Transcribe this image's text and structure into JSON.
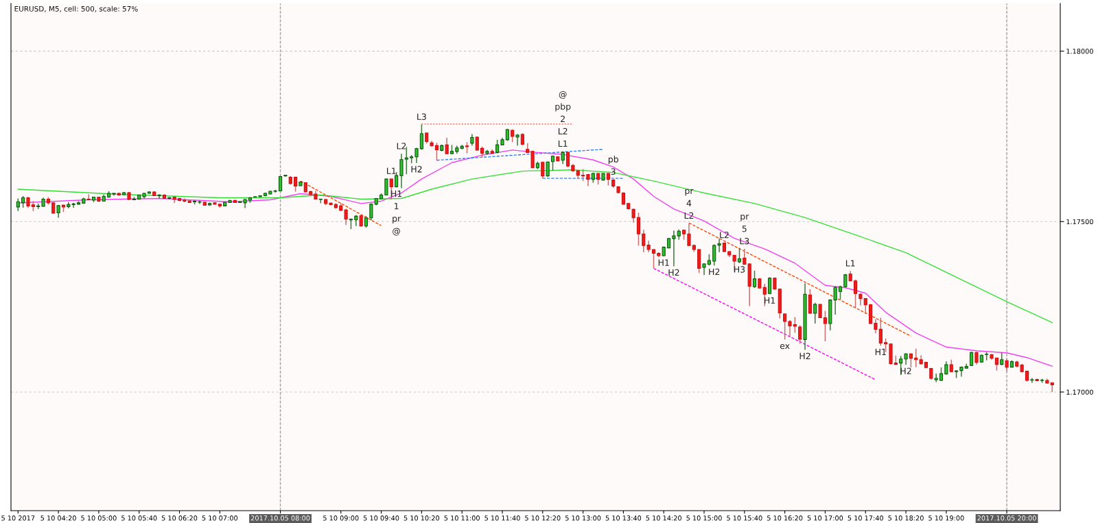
{
  "chart_data": {
    "type": "candlestick",
    "title": "EURUSD, M5, cell: 500, scale: 57%",
    "x": [
      "2017-10-05T03:40",
      "2017-10-05T03:45",
      "2017-10-05T03:50",
      "2017-10-05T03:55",
      "2017-10-05T04:00",
      "2017-10-05T04:05",
      "2017-10-05T04:10",
      "2017-10-05T04:15",
      "2017-10-05T04:20",
      "2017-10-05T04:25",
      "2017-10-05T04:30",
      "2017-10-05T04:35",
      "2017-10-05T04:40",
      "2017-10-05T04:45",
      "2017-10-05T04:50",
      "2017-10-05T04:55",
      "2017-10-05T05:00",
      "2017-10-05T05:05",
      "2017-10-05T05:10",
      "2017-10-05T05:15",
      "2017-10-05T05:20",
      "2017-10-05T05:25",
      "2017-10-05T05:30",
      "2017-10-05T05:35",
      "2017-10-05T05:40",
      "2017-10-05T05:45",
      "2017-10-05T05:50",
      "2017-10-05T05:55",
      "2017-10-05T06:00",
      "2017-10-05T06:05",
      "2017-10-05T06:10",
      "2017-10-05T06:15",
      "2017-10-05T06:20",
      "2017-10-05T06:25",
      "2017-10-05T06:30",
      "2017-10-05T06:35",
      "2017-10-05T06:40",
      "2017-10-05T06:45",
      "2017-10-05T06:50",
      "2017-10-05T06:55",
      "2017-10-05T07:00",
      "2017-10-05T07:05",
      "2017-10-05T07:10",
      "2017-10-05T07:15",
      "2017-10-05T07:20",
      "2017-10-05T07:25",
      "2017-10-05T07:30",
      "2017-10-05T07:35",
      "2017-10-05T07:40",
      "2017-10-05T07:45",
      "2017-10-05T07:50",
      "2017-10-05T07:55",
      "2017-10-05T08:00",
      "2017-10-05T08:05",
      "2017-10-05T08:10",
      "2017-10-05T08:15",
      "2017-10-05T08:20",
      "2017-10-05T08:25",
      "2017-10-05T08:30",
      "2017-10-05T08:35",
      "2017-10-05T08:40",
      "2017-10-05T08:45",
      "2017-10-05T08:50",
      "2017-10-05T08:55",
      "2017-10-05T09:00",
      "2017-10-05T09:05",
      "2017-10-05T09:10",
      "2017-10-05T09:15",
      "2017-10-05T09:20",
      "2017-10-05T09:25",
      "2017-10-05T09:30",
      "2017-10-05T09:35",
      "2017-10-05T09:40",
      "2017-10-05T09:45",
      "2017-10-05T09:50",
      "2017-10-05T09:55",
      "2017-10-05T10:00",
      "2017-10-05T10:05",
      "2017-10-05T10:10",
      "2017-10-05T10:15",
      "2017-10-05T10:20",
      "2017-10-05T10:25",
      "2017-10-05T10:30",
      "2017-10-05T10:35",
      "2017-10-05T10:40",
      "2017-10-05T10:45",
      "2017-10-05T10:50",
      "2017-10-05T10:55",
      "2017-10-05T11:00",
      "2017-10-05T11:05",
      "2017-10-05T11:10",
      "2017-10-05T11:15",
      "2017-10-05T11:20",
      "2017-10-05T11:25",
      "2017-10-05T11:30",
      "2017-10-05T11:35",
      "2017-10-05T11:40",
      "2017-10-05T11:45",
      "2017-10-05T11:50",
      "2017-10-05T11:55",
      "2017-10-05T12:00",
      "2017-10-05T12:05",
      "2017-10-05T12:10",
      "2017-10-05T12:15",
      "2017-10-05T12:20",
      "2017-10-05T12:25",
      "2017-10-05T12:30",
      "2017-10-05T12:35",
      "2017-10-05T12:40",
      "2017-10-05T12:45",
      "2017-10-05T12:50",
      "2017-10-05T12:55",
      "2017-10-05T13:00",
      "2017-10-05T13:05",
      "2017-10-05T13:10",
      "2017-10-05T13:15",
      "2017-10-05T13:20",
      "2017-10-05T13:25",
      "2017-10-05T13:30",
      "2017-10-05T13:35",
      "2017-10-05T13:40",
      "2017-10-05T13:45",
      "2017-10-05T13:50",
      "2017-10-05T13:55",
      "2017-10-05T14:00",
      "2017-10-05T14:05",
      "2017-10-05T14:10",
      "2017-10-05T14:15",
      "2017-10-05T14:20",
      "2017-10-05T14:25",
      "2017-10-05T14:30",
      "2017-10-05T14:35",
      "2017-10-05T14:40",
      "2017-10-05T14:45",
      "2017-10-05T14:50",
      "2017-10-05T14:55",
      "2017-10-05T15:00",
      "2017-10-05T15:05",
      "2017-10-05T15:10",
      "2017-10-05T15:15",
      "2017-10-05T15:20",
      "2017-10-05T15:25",
      "2017-10-05T15:30",
      "2017-10-05T15:35",
      "2017-10-05T15:40",
      "2017-10-05T15:45",
      "2017-10-05T15:50",
      "2017-10-05T15:55",
      "2017-10-05T16:00",
      "2017-10-05T16:05",
      "2017-10-05T16:10",
      "2017-10-05T16:15",
      "2017-10-05T16:20",
      "2017-10-05T16:25",
      "2017-10-05T16:30",
      "2017-10-05T16:35",
      "2017-10-05T16:40",
      "2017-10-05T16:45",
      "2017-10-05T16:50",
      "2017-10-05T16:55",
      "2017-10-05T17:00",
      "2017-10-05T17:05",
      "2017-10-05T17:10",
      "2017-10-05T17:15",
      "2017-10-05T17:20",
      "2017-10-05T17:25",
      "2017-10-05T17:30",
      "2017-10-05T17:35",
      "2017-10-05T17:40",
      "2017-10-05T17:45",
      "2017-10-05T17:50",
      "2017-10-05T17:55",
      "2017-10-05T18:00",
      "2017-10-05T18:05",
      "2017-10-05T18:10",
      "2017-10-05T18:15",
      "2017-10-05T18:20",
      "2017-10-05T18:25",
      "2017-10-05T18:30",
      "2017-10-05T18:35",
      "2017-10-05T18:40",
      "2017-10-05T18:45",
      "2017-10-05T18:50",
      "2017-10-05T18:55",
      "2017-10-05T19:00",
      "2017-10-05T19:05",
      "2017-10-05T19:10",
      "2017-10-05T19:15",
      "2017-10-05T19:20",
      "2017-10-05T19:25",
      "2017-10-05T19:30",
      "2017-10-05T19:35",
      "2017-10-05T19:40",
      "2017-10-05T19:45",
      "2017-10-05T19:50",
      "2017-10-05T19:55",
      "2017-10-05T20:00",
      "2017-10-05T20:05",
      "2017-10-05T20:10",
      "2017-10-05T20:15",
      "2017-10-05T20:20",
      "2017-10-05T20:25",
      "2017-10-05T20:30",
      "2017-10-05T20:35",
      "2017-10-05T20:40",
      "2017-10-05T20:45"
    ],
    "ohlc": [
      [
        1.17543,
        1.17568,
        1.17531,
        1.17558
      ],
      [
        1.17555,
        1.17575,
        1.17541,
        1.1757
      ],
      [
        1.1757,
        1.17573,
        1.1754,
        1.17546
      ],
      [
        1.17549,
        1.1756,
        1.17531,
        1.17544
      ],
      [
        1.17544,
        1.17553,
        1.17537,
        1.17546
      ],
      [
        1.17545,
        1.1757,
        1.17544,
        1.17566
      ],
      [
        1.17566,
        1.17572,
        1.1755,
        1.17555
      ],
      [
        1.17555,
        1.17556,
        1.17523,
        1.17525
      ],
      [
        1.17526,
        1.17548,
        1.17511,
        1.17547
      ],
      [
        1.17548,
        1.1755,
        1.17528,
        1.17543
      ],
      [
        1.17544,
        1.17557,
        1.17539,
        1.1755
      ],
      [
        1.1755,
        1.17555,
        1.17541,
        1.17552
      ],
      [
        1.17551,
        1.1756,
        1.1755,
        1.17555
      ],
      [
        1.17554,
        1.1757,
        1.17553,
        1.17567
      ],
      [
        1.17566,
        1.1758,
        1.17563,
        1.17564
      ],
      [
        1.17563,
        1.17573,
        1.17557,
        1.17572
      ],
      [
        1.17572,
        1.17573,
        1.17558,
        1.1756
      ],
      [
        1.1756,
        1.17579,
        1.1756,
        1.17574
      ],
      [
        1.17572,
        1.17589,
        1.1757,
        1.17583
      ],
      [
        1.17581,
        1.17583,
        1.17576,
        1.17583
      ],
      [
        1.17583,
        1.17585,
        1.17576,
        1.17578
      ],
      [
        1.17579,
        1.17587,
        1.17578,
        1.17585
      ],
      [
        1.17585,
        1.17587,
        1.17563,
        1.17565
      ],
      [
        1.17564,
        1.17572,
        1.17563,
        1.17566
      ],
      [
        1.17566,
        1.17579,
        1.17564,
        1.17578
      ],
      [
        1.17573,
        1.17584,
        1.17568,
        1.17583
      ],
      [
        1.17583,
        1.17589,
        1.17582,
        1.17587
      ],
      [
        1.17587,
        1.17589,
        1.17575,
        1.17576
      ],
      [
        1.17576,
        1.1758,
        1.17567,
        1.17578
      ],
      [
        1.17578,
        1.1758,
        1.17566,
        1.17568
      ],
      [
        1.17568,
        1.17572,
        1.17566,
        1.1757
      ],
      [
        1.17572,
        1.17572,
        1.17555,
        1.17565
      ],
      [
        1.17568,
        1.17568,
        1.1756,
        1.17562
      ],
      [
        1.17563,
        1.17568,
        1.17557,
        1.1756
      ],
      [
        1.17561,
        1.17562,
        1.17555,
        1.17556
      ],
      [
        1.17558,
        1.17562,
        1.1755,
        1.1756
      ],
      [
        1.17557,
        1.17562,
        1.17552,
        1.17558
      ],
      [
        1.17557,
        1.17558,
        1.17547,
        1.17548
      ],
      [
        1.17549,
        1.17556,
        1.17546,
        1.17553
      ],
      [
        1.17555,
        1.17556,
        1.1755,
        1.17551
      ],
      [
        1.17551,
        1.17552,
        1.17541,
        1.17546
      ],
      [
        1.17546,
        1.17558,
        1.17545,
        1.17557
      ],
      [
        1.17556,
        1.17564,
        1.17555,
        1.17562
      ],
      [
        1.17562,
        1.17565,
        1.17555,
        1.17556
      ],
      [
        1.17556,
        1.17558,
        1.17555,
        1.17558
      ],
      [
        1.17555,
        1.17566,
        1.1754,
        1.17565
      ],
      [
        1.17563,
        1.17572,
        1.17555,
        1.1757
      ],
      [
        1.17572,
        1.17574,
        1.17571,
        1.17573
      ],
      [
        1.17573,
        1.17577,
        1.17572,
        1.17576
      ],
      [
        1.17576,
        1.17585,
        1.17574,
        1.17583
      ],
      [
        1.17581,
        1.1759,
        1.1758,
        1.17589
      ],
      [
        1.17589,
        1.17593,
        1.17585,
        1.1759
      ],
      [
        1.1759,
        1.17634,
        1.17589,
        1.17632
      ],
      [
        1.17634,
        1.17637,
        1.17632,
        1.17636
      ],
      [
        1.1763,
        1.17634,
        1.17608,
        1.17612
      ],
      [
        1.1763,
        1.17632,
        1.17588,
        1.17604
      ],
      [
        1.17605,
        1.17618,
        1.17604,
        1.17616
      ],
      [
        1.17614,
        1.17615,
        1.17586,
        1.17587
      ],
      [
        1.17588,
        1.17591,
        1.17578,
        1.17579
      ],
      [
        1.17581,
        1.1759,
        1.17565,
        1.17566
      ],
      [
        1.17565,
        1.17567,
        1.17554,
        1.17566
      ],
      [
        1.17565,
        1.17566,
        1.17548,
        1.17553
      ],
      [
        1.17554,
        1.17556,
        1.17548,
        1.1755
      ],
      [
        1.1755,
        1.17554,
        1.17538,
        1.17541
      ],
      [
        1.17546,
        1.17554,
        1.17531,
        1.17533
      ],
      [
        1.17534,
        1.17538,
        1.1749,
        1.17507
      ],
      [
        1.17505,
        1.17509,
        1.17478,
        1.17507
      ],
      [
        1.17505,
        1.17519,
        1.17487,
        1.17516
      ],
      [
        1.17517,
        1.17519,
        1.17485,
        1.17487
      ],
      [
        1.17487,
        1.17516,
        1.17482,
        1.17511
      ],
      [
        1.17511,
        1.17554,
        1.17504,
        1.17551
      ],
      [
        1.17551,
        1.17569,
        1.17548,
        1.17568
      ],
      [
        1.17567,
        1.17583,
        1.17565,
        1.17578
      ],
      [
        1.17578,
        1.17626,
        1.17577,
        1.17625
      ],
      [
        1.17625,
        1.17626,
        1.17565,
        1.17602
      ],
      [
        1.17602,
        1.17645,
        1.176,
        1.17635
      ],
      [
        1.17635,
        1.17699,
        1.17598,
        1.17682
      ],
      [
        1.17683,
        1.17719,
        1.17639,
        1.17687
      ],
      [
        1.17687,
        1.17695,
        1.17671,
        1.1769
      ],
      [
        1.1769,
        1.17716,
        1.17672,
        1.17714
      ],
      [
        1.17714,
        1.17785,
        1.17711,
        1.17758
      ],
      [
        1.1776,
        1.17761,
        1.17729,
        1.17735
      ],
      [
        1.17731,
        1.17737,
        1.17719,
        1.17723
      ],
      [
        1.17723,
        1.17731,
        1.17679,
        1.17711
      ],
      [
        1.17709,
        1.17726,
        1.17706,
        1.17723
      ],
      [
        1.17725,
        1.17746,
        1.17698,
        1.17699
      ],
      [
        1.17699,
        1.17725,
        1.17698,
        1.17706
      ],
      [
        1.17706,
        1.17723,
        1.17699,
        1.17716
      ],
      [
        1.17715,
        1.17725,
        1.17712,
        1.17721
      ],
      [
        1.17722,
        1.17733,
        1.177,
        1.1772
      ],
      [
        1.1773,
        1.17757,
        1.17723,
        1.17747
      ],
      [
        1.17748,
        1.1775,
        1.17708,
        1.1771
      ],
      [
        1.17715,
        1.1772,
        1.17688,
        1.177
      ],
      [
        1.177,
        1.1771,
        1.17696,
        1.17706
      ],
      [
        1.17706,
        1.17712,
        1.17698,
        1.177
      ],
      [
        1.17703,
        1.1774,
        1.177,
        1.17725
      ],
      [
        1.17725,
        1.17746,
        1.17724,
        1.1774
      ],
      [
        1.1774,
        1.17772,
        1.17737,
        1.1777
      ],
      [
        1.17768,
        1.1777,
        1.17733,
        1.1775
      ],
      [
        1.17748,
        1.17757,
        1.17723,
        1.17754
      ],
      [
        1.17756,
        1.17759,
        1.17723,
        1.17727
      ],
      [
        1.17712,
        1.1773,
        1.17701,
        1.17703
      ],
      [
        1.17706,
        1.17708,
        1.17657,
        1.17658
      ],
      [
        1.17658,
        1.17676,
        1.17654,
        1.17671
      ],
      [
        1.17674,
        1.17676,
        1.17626,
        1.17634
      ],
      [
        1.17634,
        1.17676,
        1.17632,
        1.17675
      ],
      [
        1.17676,
        1.17693,
        1.17649,
        1.17692
      ],
      [
        1.1769,
        1.17692,
        1.17676,
        1.17678
      ],
      [
        1.1768,
        1.17706,
        1.17669,
        1.17703
      ],
      [
        1.17703,
        1.17704,
        1.17659,
        1.17663
      ],
      [
        1.17665,
        1.17669,
        1.17646,
        1.17649
      ],
      [
        1.17649,
        1.17651,
        1.17626,
        1.17636
      ],
      [
        1.17636,
        1.17654,
        1.17619,
        1.17634
      ],
      [
        1.17638,
        1.17639,
        1.17604,
        1.17624
      ],
      [
        1.17624,
        1.17643,
        1.17614,
        1.17641
      ],
      [
        1.17641,
        1.17642,
        1.17609,
        1.17624
      ],
      [
        1.17622,
        1.17642,
        1.1762,
        1.17641
      ],
      [
        1.17641,
        1.17642,
        1.17606,
        1.17624
      ],
      [
        1.17622,
        1.17624,
        1.17599,
        1.17604
      ],
      [
        1.17602,
        1.17604,
        1.17582,
        1.17585
      ],
      [
        1.17584,
        1.17586,
        1.1755,
        1.17551
      ],
      [
        1.17553,
        1.17554,
        1.17535,
        1.17538
      ],
      [
        1.17536,
        1.17538,
        1.17497,
        1.17511
      ],
      [
        1.17512,
        1.17526,
        1.17429,
        1.17464
      ],
      [
        1.17464,
        1.17476,
        1.1741,
        1.1743
      ],
      [
        1.17431,
        1.17444,
        1.1741,
        1.17418
      ],
      [
        1.17418,
        1.17419,
        1.17363,
        1.17407
      ],
      [
        1.17407,
        1.1741,
        1.17395,
        1.174
      ],
      [
        1.174,
        1.17427,
        1.17398,
        1.17425
      ],
      [
        1.17423,
        1.17452,
        1.17422,
        1.1745
      ],
      [
        1.1745,
        1.17474,
        1.17369,
        1.17458
      ],
      [
        1.17458,
        1.17477,
        1.17447,
        1.17472
      ],
      [
        1.17475,
        1.17477,
        1.17447,
        1.17464
      ],
      [
        1.17464,
        1.17495,
        1.17429,
        1.1743
      ],
      [
        1.1743,
        1.17433,
        1.17411,
        1.17418
      ],
      [
        1.17418,
        1.17419,
        1.17349,
        1.17363
      ],
      [
        1.17366,
        1.17378,
        1.17343,
        1.17376
      ],
      [
        1.17375,
        1.17404,
        1.17371,
        1.17386
      ],
      [
        1.17384,
        1.17433,
        1.17371,
        1.1743
      ],
      [
        1.17431,
        1.1745,
        1.1741,
        1.17435
      ],
      [
        1.17437,
        1.17438,
        1.1741,
        1.17412
      ],
      [
        1.17412,
        1.17413,
        1.17396,
        1.17402
      ],
      [
        1.17401,
        1.17403,
        1.17353,
        1.17384
      ],
      [
        1.17382,
        1.17423,
        1.17378,
        1.17391
      ],
      [
        1.17393,
        1.1742,
        1.17373,
        1.17375
      ],
      [
        1.17376,
        1.17378,
        1.17252,
        1.1731
      ],
      [
        1.17309,
        1.17356,
        1.17305,
        1.17332
      ],
      [
        1.17332,
        1.17334,
        1.17304,
        1.17305
      ],
      [
        1.17307,
        1.17317,
        1.17252,
        1.17287
      ],
      [
        1.17289,
        1.17337,
        1.17287,
        1.17334
      ],
      [
        1.17334,
        1.17336,
        1.173,
        1.17302
      ],
      [
        1.17302,
        1.17304,
        1.17216,
        1.17232
      ],
      [
        1.17229,
        1.17231,
        1.17154,
        1.17207
      ],
      [
        1.17207,
        1.17211,
        1.17164,
        1.17194
      ],
      [
        1.17198,
        1.1722,
        1.17174,
        1.17193
      ],
      [
        1.17191,
        1.17196,
        1.17142,
        1.17155
      ],
      [
        1.17154,
        1.17319,
        1.17124,
        1.17287
      ],
      [
        1.17285,
        1.17302,
        1.17229,
        1.17231
      ],
      [
        1.17231,
        1.17262,
        1.17201,
        1.17257
      ],
      [
        1.17257,
        1.17258,
        1.17217,
        1.17218
      ],
      [
        1.17218,
        1.17238,
        1.17149,
        1.17201
      ],
      [
        1.17201,
        1.17272,
        1.17181,
        1.1727
      ],
      [
        1.1727,
        1.1731,
        1.17227,
        1.17307
      ],
      [
        1.17295,
        1.17312,
        1.17272,
        1.17309
      ],
      [
        1.17309,
        1.17346,
        1.17307,
        1.17344
      ],
      [
        1.17346,
        1.17355,
        1.17324,
        1.17326
      ],
      [
        1.17326,
        1.1733,
        1.17246,
        1.17289
      ],
      [
        1.17287,
        1.1729,
        1.17254,
        1.17274
      ],
      [
        1.17274,
        1.17275,
        1.17229,
        1.17256
      ],
      [
        1.17256,
        1.17258,
        1.172,
        1.17201
      ],
      [
        1.17202,
        1.17213,
        1.17173,
        1.17184
      ],
      [
        1.17184,
        1.17218,
        1.17136,
        1.17144
      ],
      [
        1.17145,
        1.17157,
        1.17117,
        1.17141
      ],
      [
        1.17141,
        1.17142,
        1.17081,
        1.17083
      ],
      [
        1.17085,
        1.17107,
        1.1708,
        1.17081
      ],
      [
        1.17085,
        1.17106,
        1.1705,
        1.17097
      ],
      [
        1.17097,
        1.17114,
        1.1708,
        1.17112
      ],
      [
        1.17112,
        1.17114,
        1.17072,
        1.17099
      ],
      [
        1.171,
        1.17127,
        1.17073,
        1.17095
      ],
      [
        1.17095,
        1.17108,
        1.17081,
        1.17083
      ],
      [
        1.17087,
        1.17088,
        1.1707,
        1.17072
      ],
      [
        1.17069,
        1.17071,
        1.17036,
        1.1704
      ],
      [
        1.17036,
        1.17054,
        1.17029,
        1.1704
      ],
      [
        1.17034,
        1.17072,
        1.17033,
        1.17054
      ],
      [
        1.17053,
        1.1709,
        1.17052,
        1.1708
      ],
      [
        1.1708,
        1.17095,
        1.17058,
        1.1706
      ],
      [
        1.1706,
        1.17064,
        1.17041,
        1.17062
      ],
      [
        1.17063,
        1.17075,
        1.17045,
        1.17073
      ],
      [
        1.1707,
        1.17083,
        1.17069,
        1.17075
      ],
      [
        1.17078,
        1.17119,
        1.17076,
        1.17116
      ],
      [
        1.17116,
        1.17119,
        1.17081,
        1.17087
      ],
      [
        1.17088,
        1.1711,
        1.17087,
        1.17108
      ],
      [
        1.1711,
        1.17117,
        1.17093,
        1.17111
      ],
      [
        1.1711,
        1.17111,
        1.17095,
        1.17099
      ],
      [
        1.171,
        1.17101,
        1.17063,
        1.17081
      ],
      [
        1.17081,
        1.17115,
        1.17079,
        1.17095
      ],
      [
        1.17092,
        1.17097,
        1.1706,
        1.17073
      ],
      [
        1.17073,
        1.17093,
        1.17072,
        1.17089
      ],
      [
        1.17088,
        1.17092,
        1.17073,
        1.17076
      ],
      [
        1.17079,
        1.17083,
        1.17058,
        1.1706
      ],
      [
        1.17061,
        1.17063,
        1.17031,
        1.17034
      ],
      [
        1.17035,
        1.17041,
        1.17027,
        1.17036
      ],
      [
        1.17037,
        1.17039,
        1.17031,
        1.17033
      ],
      [
        1.17034,
        1.17039,
        1.17027,
        1.17035
      ],
      [
        1.17034,
        1.17039,
        1.17025,
        1.17026
      ],
      [
        1.17027,
        1.17029,
        1.17,
        1.17021
      ]
    ],
    "series": [
      {
        "type": "line",
        "color": "#f040f0",
        "line_style": "solid",
        "x": [
          "2017-10-05T03:40",
          "2017-10-05T04:50",
          "2017-10-05T06:00",
          "2017-10-05T07:10",
          "2017-10-05T07:50",
          "2017-10-05T08:20",
          "2017-10-05T08:50",
          "2017-10-05T09:20",
          "2017-10-05T09:40",
          "2017-10-05T10:00",
          "2017-10-05T10:20",
          "2017-10-05T10:50",
          "2017-10-05T11:20",
          "2017-10-05T11:50",
          "2017-10-05T12:10",
          "2017-10-05T12:40",
          "2017-10-05T13:10",
          "2017-10-05T13:30",
          "2017-10-05T13:50",
          "2017-10-05T14:10",
          "2017-10-05T14:30",
          "2017-10-05T15:00",
          "2017-10-05T15:30",
          "2017-10-05T16:00",
          "2017-10-05T16:30",
          "2017-10-05T17:00",
          "2017-10-05T17:20",
          "2017-10-05T17:40",
          "2017-10-05T18:00",
          "2017-10-05T18:30",
          "2017-10-05T19:00",
          "2017-10-05T19:30",
          "2017-10-05T20:00",
          "2017-10-05T20:20",
          "2017-10-05T20:45"
        ],
        "values": [
          1.17555,
          1.17564,
          1.17568,
          1.17558,
          1.17564,
          1.17582,
          1.17574,
          1.17553,
          1.1756,
          1.17584,
          1.17625,
          1.17673,
          1.17695,
          1.1771,
          1.17704,
          1.17697,
          1.17681,
          1.1766,
          1.17625,
          1.17574,
          1.17537,
          1.17502,
          1.17451,
          1.1742,
          1.17378,
          1.17313,
          1.17306,
          1.1729,
          1.17234,
          1.17173,
          1.17132,
          1.17121,
          1.17115,
          1.17101,
          1.17076
        ]
      },
      {
        "type": "line",
        "color": "#33e033",
        "line_style": "solid",
        "x": [
          "2017-10-05T03:40",
          "2017-10-05T05:20",
          "2017-10-05T07:00",
          "2017-10-05T08:00",
          "2017-10-05T08:40",
          "2017-10-05T09:20",
          "2017-10-05T10:00",
          "2017-10-05T10:30",
          "2017-10-05T11:10",
          "2017-10-05T12:00",
          "2017-10-05T12:50",
          "2017-10-05T13:30",
          "2017-10-05T14:10",
          "2017-10-05T15:00",
          "2017-10-05T15:50",
          "2017-10-05T16:40",
          "2017-10-05T17:30",
          "2017-10-05T18:20",
          "2017-10-05T19:10",
          "2017-10-05T20:00",
          "2017-10-05T20:45"
        ],
        "values": [
          1.17595,
          1.1758,
          1.1757,
          1.1757,
          1.17578,
          1.17566,
          1.17568,
          1.17595,
          1.17625,
          1.17648,
          1.17652,
          1.17644,
          1.17619,
          1.17584,
          1.17553,
          1.17512,
          1.17461,
          1.17409,
          1.17337,
          1.17265,
          1.17204
        ]
      },
      {
        "type": "line",
        "color": "#ff4500",
        "line_style": "dashed",
        "x": [
          "2017-10-05T08:20",
          "2017-10-05T09:40"
        ],
        "values": [
          1.17619,
          1.17488
        ]
      },
      {
        "type": "line",
        "color": "#ff7060",
        "line_style": "dotted",
        "x": [
          "2017-10-05T10:20",
          "2017-10-05T12:50"
        ],
        "values": [
          1.17786,
          1.17786
        ]
      },
      {
        "type": "line",
        "color": "#2a7fff",
        "line_style": "dashed",
        "x": [
          "2017-10-05T10:35",
          "2017-10-05T13:20"
        ],
        "values": [
          1.1768,
          1.17712
        ]
      },
      {
        "type": "line",
        "color": "#2a7fff",
        "line_style": "dashed",
        "x": [
          "2017-10-05T12:20",
          "2017-10-05T13:40"
        ],
        "values": [
          1.17627,
          1.17627
        ]
      },
      {
        "type": "line",
        "color": "#ff00ff",
        "line_style": "dashed",
        "x": [
          "2017-10-05T14:10",
          "2017-10-05T17:50"
        ],
        "values": [
          1.17363,
          1.17036
        ]
      },
      {
        "type": "line",
        "color": "#ff4500",
        "line_style": "dashed",
        "x": [
          "2017-10-05T14:45",
          "2017-10-05T18:25"
        ],
        "values": [
          1.17496,
          1.17164
        ]
      }
    ],
    "annotations": [
      {
        "text": "L3",
        "x": "2017-10-05T10:20",
        "y": 1.17785
      },
      {
        "text": "L2",
        "x": "2017-10-05T10:00",
        "y": 1.17699
      },
      {
        "text": "H2",
        "x": "2017-10-05T10:15",
        "y": 1.17672
      },
      {
        "text": "L1",
        "x": "2017-10-05T09:50",
        "y": 1.17626
      },
      {
        "text": "H1",
        "x": "2017-10-05T09:55",
        "y": 1.176
      },
      "1",
      "pr",
      "@",
      {
        "text": "L1",
        "x": "2017-10-05T12:40",
        "y": 1.17706
      },
      "L2",
      "2",
      "pbp",
      "@",
      {
        "text": "3",
        "x": "2017-10-05T13:30",
        "y": 1.17624
      },
      "pb",
      {
        "text": "L2",
        "x": "2017-10-05T14:45",
        "y": 1.17495
      },
      "4",
      "pr",
      {
        "text": "L3",
        "x": "2017-10-05T15:40",
        "y": 1.1742
      },
      "5",
      "pr",
      {
        "text": "L2",
        "x": "2017-10-05T15:20",
        "y": 1.17438
      },
      {
        "text": "H1",
        "x": "2017-10-05T14:20",
        "y": 1.17398
      },
      {
        "text": "H2",
        "x": "2017-10-05T14:30",
        "y": 1.17369
      },
      {
        "text": "H2",
        "x": "2017-10-05T15:10",
        "y": 1.17371
      },
      {
        "text": "H3",
        "x": "2017-10-05T15:35",
        "y": 1.17378
      },
      {
        "text": "H1",
        "x": "2017-10-05T16:05",
        "y": 1.17287
      },
      {
        "text": "ex",
        "x": "2017-10-05T16:20",
        "y": 1.17154
      },
      {
        "text": "H2",
        "x": "2017-10-05T16:40",
        "y": 1.17124
      },
      {
        "text": "L1",
        "x": "2017-10-05T17:25",
        "y": 1.17355
      },
      {
        "text": "H1",
        "x": "2017-10-05T17:55",
        "y": 1.17136
      },
      {
        "text": "H2",
        "x": "2017-10-05T18:20",
        "y": 1.1708
      }
    ],
    "ref_lines": [
      {
        "axis": "x",
        "value": "2017-10-05T08:00",
        "color": "#a0a0a0",
        "line_style": "dashed"
      },
      {
        "axis": "x",
        "value": "2017-10-05T20:00",
        "color": "#a0a0a0",
        "line_style": "dashed"
      }
    ],
    "xlim": [
      "2017-10-05T03:33",
      "2017-10-05T20:53"
    ],
    "xticks": [
      {
        "value": "2017-10-05T03:40",
        "label": "5 10 2017"
      },
      {
        "value": "2017-10-05T04:20",
        "label": "5 10 04:20"
      },
      {
        "value": "2017-10-05T05:00",
        "label": "5 10 05:00"
      },
      {
        "value": "2017-10-05T05:40",
        "label": "5 10 05:40"
      },
      {
        "value": "2017-10-05T06:20",
        "label": "5 10 06:20"
      },
      {
        "value": "2017-10-05T07:00",
        "label": "5 10 07:00"
      },
      {
        "value": "2017-10-05T08:00",
        "label": "2017.10.05 08:00"
      },
      {
        "value": "2017-10-05T09:00",
        "label": "5 10 09:00"
      },
      {
        "value": "2017-10-05T09:40",
        "label": "5 10 09:40"
      },
      {
        "value": "2017-10-05T10:20",
        "label": "5 10 10:20"
      },
      {
        "value": "2017-10-05T11:00",
        "label": "5 10 11:00"
      },
      {
        "value": "2017-10-05T11:40",
        "label": "5 10 11:40"
      },
      {
        "value": "2017-10-05T12:20",
        "label": "5 10 12:20"
      },
      {
        "value": "2017-10-05T13:00",
        "label": "5 10 13:00"
      },
      {
        "value": "2017-10-05T13:40",
        "label": "5 10 13:40"
      },
      {
        "value": "2017-10-05T14:20",
        "label": "5 10 14:20"
      },
      {
        "value": "2017-10-05T15:00",
        "label": "5 10 15:00"
      },
      {
        "value": "2017-10-05T15:40",
        "label": "5 10 15:40"
      },
      {
        "value": "2017-10-05T16:20",
        "label": "5 10 16:20"
      },
      {
        "value": "2017-10-05T17:00",
        "label": "5 10 17:00"
      },
      {
        "value": "2017-10-05T17:40",
        "label": "5 10 17:40"
      },
      {
        "value": "2017-10-05T18:20",
        "label": "5 10 18:20"
      },
      {
        "value": "2017-10-05T19:00",
        "label": "5 10 19:00"
      },
      {
        "value": "2017-10-05T20:00",
        "label": "2017.10.05 20:00"
      }
    ],
    "ylim": [
      1.16652,
      1.1814
    ],
    "yticks": [
      {
        "value": 1.17,
        "label": "1.17000"
      },
      {
        "value": 1.175,
        "label": "1.17500"
      },
      {
        "value": 1.18,
        "label": "1.18000"
      }
    ],
    "grid": "y",
    "legend": false
  }
}
